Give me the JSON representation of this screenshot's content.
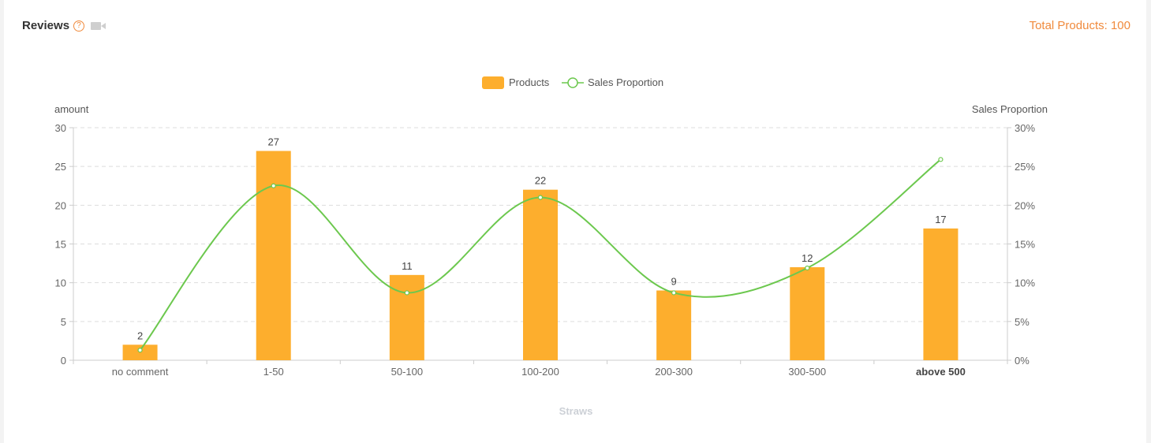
{
  "header": {
    "title": "Reviews",
    "help_icon": "question-circle-icon",
    "video_icon": "video-camera-icon",
    "total_label": "Total Products: 100"
  },
  "colors": {
    "bar": "#FDAE2D",
    "line": "#6CC84E",
    "accent": "#F08A3C",
    "grid": "#DDDDDD"
  },
  "chart_data": {
    "type": "bar",
    "categories": [
      "no comment",
      "1-50",
      "50-100",
      "100-200",
      "200-300",
      "300-500",
      "above 500"
    ],
    "series": [
      {
        "name": "Products",
        "type": "bar",
        "axis": "left",
        "values": [
          2,
          27,
          11,
          22,
          9,
          12,
          17
        ]
      },
      {
        "name": "Sales Proportion",
        "type": "line",
        "axis": "right",
        "smooth": true,
        "values": [
          1.3,
          22.5,
          8.7,
          21.0,
          8.7,
          11.9,
          25.9
        ]
      }
    ],
    "legend": [
      "Products",
      "Sales Proportion"
    ],
    "legend_position": "top-center",
    "ylabel_left": "amount",
    "ylabel_right": "Sales Proportion",
    "ylim_left": [
      0,
      30
    ],
    "ylim_right": [
      0,
      30
    ],
    "yticks_left": [
      "0",
      "5",
      "10",
      "15",
      "20",
      "25",
      "30"
    ],
    "yticks_right": [
      "0%",
      "5%",
      "10%",
      "15%",
      "20%",
      "25%",
      "30%"
    ],
    "xlabel": "Straws",
    "grid": true
  }
}
